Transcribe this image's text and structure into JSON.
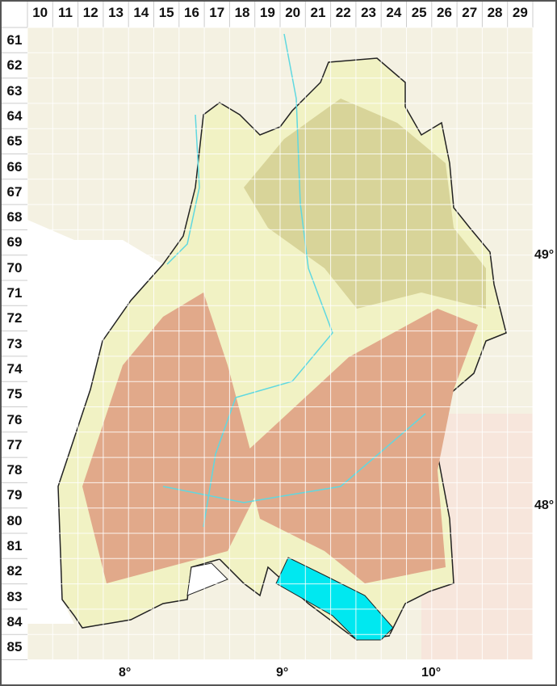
{
  "grid": {
    "columns": [
      "10",
      "11",
      "12",
      "13",
      "14",
      "15",
      "16",
      "17",
      "18",
      "19",
      "20",
      "21",
      "22",
      "23",
      "24",
      "25",
      "26",
      "27",
      "28",
      "29"
    ],
    "rows": [
      "61",
      "62",
      "63",
      "64",
      "65",
      "66",
      "67",
      "68",
      "69",
      "70",
      "71",
      "72",
      "73",
      "74",
      "75",
      "76",
      "77",
      "78",
      "79",
      "80",
      "81",
      "82",
      "83",
      "84",
      "85"
    ]
  },
  "longitude_labels": [
    "8°",
    "9°",
    "10°"
  ],
  "latitude_labels": [
    "49°",
    "48°"
  ],
  "colors": {
    "lowland": "#f1f2c4",
    "hills": "#d8d499",
    "highland": "#e1a98a",
    "outside": "#f4f1e2",
    "lake": "#00e8f0",
    "rivers": "#5fd8e0",
    "grid": "#ffffff",
    "border": "#222222"
  }
}
